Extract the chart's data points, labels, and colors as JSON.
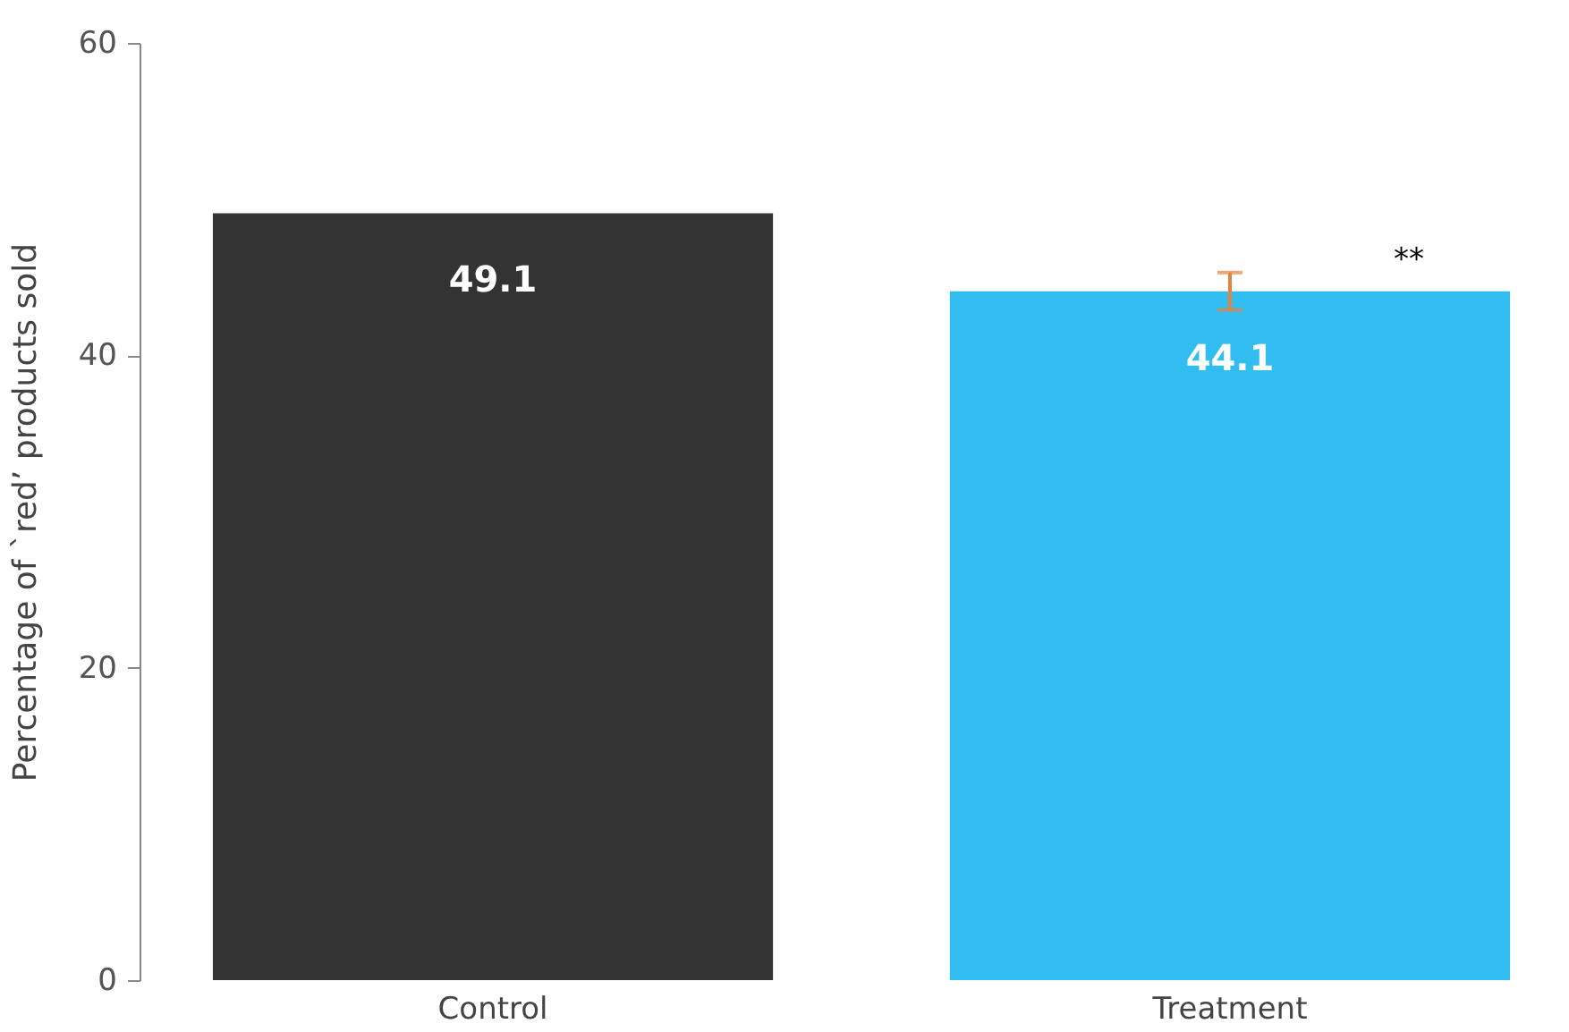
{
  "chart_data": {
    "type": "bar",
    "categories": [
      "Control",
      "Treatment"
    ],
    "values": [
      49.1,
      44.1
    ],
    "colors": [
      "#333333",
      "#31bdf0"
    ],
    "errors": [
      null,
      [
        42.9,
        45.3
      ]
    ],
    "ylabel": "Percentage of `red’ products sold",
    "ylim": [
      0,
      60
    ],
    "yticks": [
      0,
      20,
      40,
      60
    ],
    "data_labels": true,
    "annotations": [
      "**"
    ],
    "grid": false
  }
}
